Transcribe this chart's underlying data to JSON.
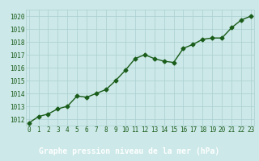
{
  "x": [
    0,
    1,
    2,
    3,
    4,
    5,
    6,
    7,
    8,
    9,
    10,
    11,
    12,
    13,
    14,
    15,
    16,
    17,
    18,
    19,
    20,
    21,
    22,
    23
  ],
  "y": [
    1011.7,
    1012.2,
    1012.4,
    1012.8,
    1013.0,
    1013.8,
    1013.7,
    1014.0,
    1014.3,
    1015.0,
    1015.8,
    1016.7,
    1017.0,
    1016.7,
    1016.5,
    1016.4,
    1017.5,
    1017.8,
    1018.2,
    1018.3,
    1018.3,
    1019.1,
    1019.7,
    1020.0
  ],
  "line_color": "#1a5c1a",
  "marker": "D",
  "marker_size": 2.5,
  "linewidth": 1.0,
  "bg_color": "#cce8e8",
  "bottom_bar_color": "#1a5c1a",
  "grid_color": "#aacfcf",
  "title": "Graphe pression niveau de la mer (hPa)",
  "title_color": "#1a5c1a",
  "tick_color": "#1a5c1a",
  "ylim": [
    1011.5,
    1020.5
  ],
  "yticks": [
    1012,
    1013,
    1014,
    1015,
    1016,
    1017,
    1018,
    1019,
    1020
  ],
  "xticks": [
    0,
    1,
    2,
    3,
    4,
    5,
    6,
    7,
    8,
    9,
    10,
    11,
    12,
    13,
    14,
    15,
    16,
    17,
    18,
    19,
    20,
    21,
    22,
    23
  ],
  "tick_label_size": 5.5,
  "title_fontsize": 7.0,
  "xlim_left": -0.3,
  "xlim_right": 23.3
}
